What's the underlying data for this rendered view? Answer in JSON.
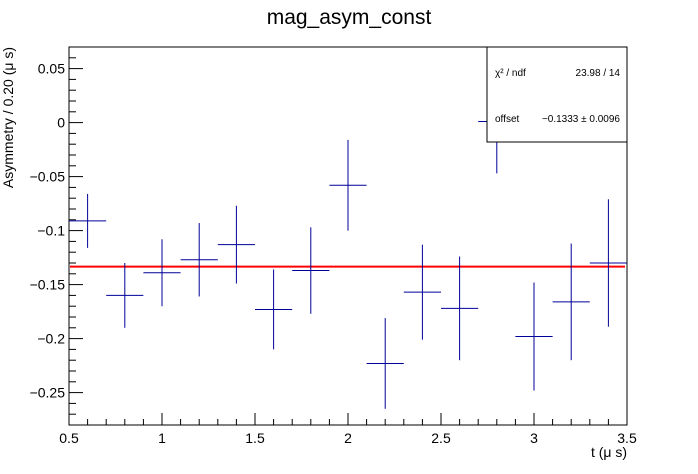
{
  "chart_data": {
    "type": "scatter",
    "title": "mag_asym_const",
    "xlabel": "t (μ s)",
    "ylabel": "Asymmetry / 0.20 (μ s)",
    "xlim": [
      0.5,
      3.5
    ],
    "ylim": [
      -0.28,
      0.07
    ],
    "x_ticks": [
      0.5,
      1,
      1.5,
      2,
      2.5,
      3,
      3.5
    ],
    "x_tick_labels": [
      "0.5",
      "1",
      "1.5",
      "2",
      "2.5",
      "3",
      "3.5"
    ],
    "y_ticks": [
      -0.25,
      -0.2,
      -0.15,
      -0.1,
      -0.05,
      0,
      0.05
    ],
    "y_tick_labels": [
      "−0.25",
      "−0.2",
      "−0.15",
      "−0.1",
      "−0.05",
      "0",
      "0.05"
    ],
    "grid": false,
    "bin_half_width": 0.1,
    "series": [
      {
        "color": "#000099",
        "x": [
          0.6,
          0.8,
          1.0,
          1.2,
          1.4,
          1.6,
          1.8,
          2.0,
          2.2,
          2.4,
          2.6,
          2.8,
          3.0,
          3.2,
          3.4
        ],
        "y": [
          -0.091,
          -0.16,
          -0.139,
          -0.127,
          -0.113,
          -0.173,
          -0.137,
          -0.058,
          -0.223,
          -0.157,
          -0.172,
          0.001,
          -0.198,
          -0.166,
          -0.13
        ],
        "yerr": [
          0.025,
          0.03,
          0.031,
          0.034,
          0.036,
          0.037,
          0.04,
          0.042,
          0.042,
          0.044,
          0.048,
          0.048,
          0.05,
          0.054,
          0.059
        ]
      }
    ],
    "fit": {
      "color": "#ff0000",
      "y": -0.1333,
      "x_range": [
        0.5,
        3.5
      ]
    },
    "stats_box": {
      "row1_label": "χ² / ndf",
      "row1_value": "23.98 / 14",
      "row2_label": "offset",
      "row2_value": "−0.1333 ± 0.0096"
    }
  }
}
